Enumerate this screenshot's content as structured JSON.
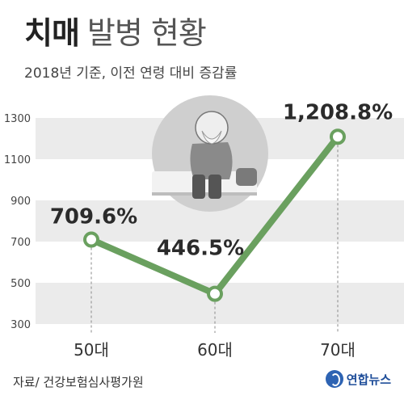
{
  "header": {
    "title_bold": "치매",
    "title_light": "발병 현황",
    "subtitle": "2018년 기준, 이전 연령 대비 증감률"
  },
  "footer": {
    "source": "자료/ 건강보험심사평가원",
    "logo_text": "연합뉴스",
    "logo_icon": "yonhap-logo-icon"
  },
  "colors": {
    "line": "#6aa05f",
    "band": "#ebebeb",
    "illustration_bg": "#cfcfcf"
  },
  "chart_data": {
    "type": "line",
    "title": "치매 발병 현황",
    "subtitle": "2018년 기준, 이전 연령 대비 증감률",
    "categories": [
      "50대",
      "60대",
      "70대"
    ],
    "series": [
      {
        "values": [
          709.6,
          446.5,
          1208.8
        ]
      }
    ],
    "value_labels": [
      "709.6%",
      "446.5%",
      "1,208.8%"
    ],
    "yticks": [
      300,
      500,
      700,
      900,
      1100,
      1300
    ],
    "ylim": [
      300,
      1300
    ],
    "grid": "alternating-bands",
    "legend": "none"
  }
}
